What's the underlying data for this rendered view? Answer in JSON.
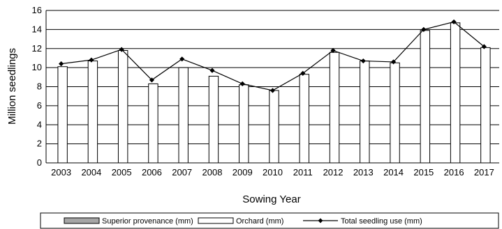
{
  "chart_data": {
    "type": "bar",
    "xlabel": "Sowing Year",
    "ylabel": "Million seedlings",
    "ylim": [
      0,
      16
    ],
    "yticks": [
      0,
      2,
      4,
      6,
      8,
      10,
      12,
      14,
      16
    ],
    "grid": true,
    "legend_position": "bottom",
    "categories": [
      "2003",
      "2004",
      "2005",
      "2006",
      "2007",
      "2008",
      "2009",
      "2010",
      "2011",
      "2012",
      "2013",
      "2014",
      "2015",
      "2016",
      "2017"
    ],
    "series": [
      {
        "name": "Superior provenance (mm)",
        "kind": "bar",
        "color": "#a6a6a6",
        "values": [
          0,
          0,
          0,
          0,
          0,
          0,
          0,
          0,
          0,
          0,
          0,
          0,
          0,
          0,
          0
        ]
      },
      {
        "name": "Orchard (mm)",
        "kind": "bar",
        "color": "#ffffff",
        "values": [
          10.1,
          10.7,
          11.8,
          8.3,
          10.0,
          9.1,
          8.2,
          7.6,
          9.3,
          11.6,
          10.7,
          10.5,
          13.9,
          14.7,
          12.1
        ]
      },
      {
        "name": "Total seedling use (mm)",
        "kind": "line",
        "color": "#000000",
        "values": [
          10.4,
          10.8,
          11.9,
          8.7,
          10.9,
          9.7,
          8.3,
          7.6,
          9.4,
          11.8,
          10.7,
          10.6,
          14.0,
          14.8,
          12.2
        ]
      }
    ]
  }
}
